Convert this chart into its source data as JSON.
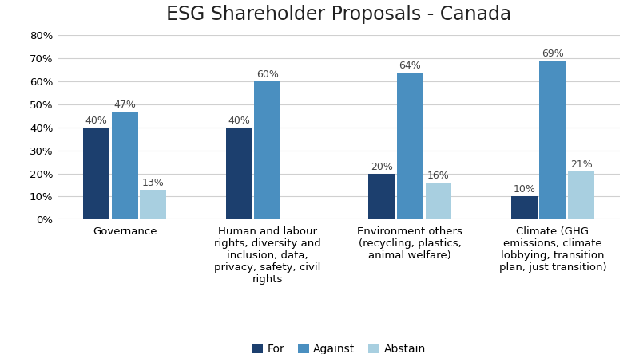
{
  "title": "ESG Shareholder Proposals - Canada",
  "categories": [
    "Governance",
    "Human and labour\nrights, diversity and\ninclusion, data,\nprivacy, safety, civil\nrights",
    "Environment others\n(recycling, plastics,\nanimal welfare)",
    "Climate (GHG\nemissions, climate\nlobbying, transition\nplan, just transition)"
  ],
  "series": {
    "For": [
      40,
      40,
      20,
      10
    ],
    "Against": [
      47,
      60,
      64,
      69
    ],
    "Abstain": [
      13,
      0,
      16,
      21
    ]
  },
  "colors": {
    "For": "#1c3f6e",
    "Against": "#4a8fc0",
    "Abstain": "#a8cfe0"
  },
  "ylim": [
    0,
    80
  ],
  "yticks": [
    0,
    10,
    20,
    30,
    40,
    50,
    60,
    70,
    80
  ],
  "bar_width": 0.2,
  "legend_labels": [
    "For",
    "Against",
    "Abstain"
  ],
  "title_fontsize": 17,
  "tick_fontsize": 9.5,
  "label_fontsize": 9,
  "legend_fontsize": 10,
  "background_color": "#ffffff"
}
